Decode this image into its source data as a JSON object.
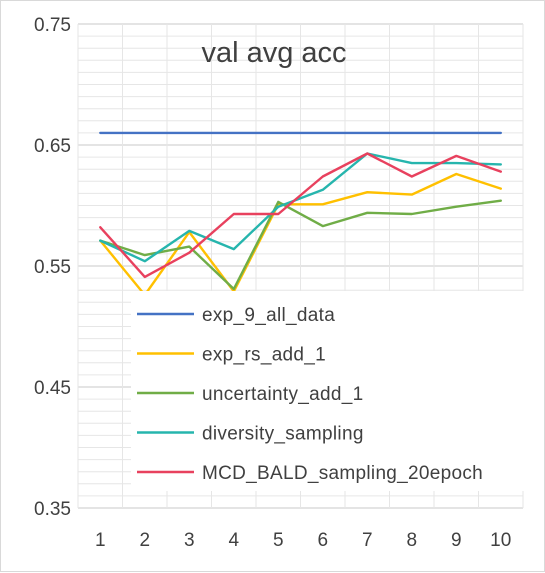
{
  "chart_data": {
    "type": "line",
    "title": "val avg acc",
    "xlabel": "",
    "ylabel": "",
    "categories": [
      "1",
      "2",
      "3",
      "4",
      "5",
      "6",
      "7",
      "8",
      "9",
      "10"
    ],
    "ylim": [
      0.35,
      0.75
    ],
    "y_ticks": [
      "0.75",
      "0.65",
      "0.55",
      "0.45",
      "0.35"
    ],
    "grid": "on",
    "legend_position": "inside-bottom",
    "series": [
      {
        "name": "exp_9_all_data",
        "color": "#4472C4",
        "values": [
          0.66,
          0.66,
          0.66,
          0.66,
          0.66,
          0.66,
          0.66,
          0.66,
          0.66,
          0.66
        ]
      },
      {
        "name": "exp_rs_add_1",
        "color": "#FFC000",
        "values": [
          0.571,
          0.526,
          0.578,
          0.529,
          0.601,
          0.601,
          0.611,
          0.609,
          0.626,
          0.614
        ]
      },
      {
        "name": "uncertainty_add_1",
        "color": "#70AD47",
        "values": [
          0.571,
          0.559,
          0.566,
          0.531,
          0.603,
          0.583,
          0.594,
          0.593,
          0.599,
          0.604
        ]
      },
      {
        "name": "diversity_sampling",
        "color": "#26B5AD",
        "values": [
          0.571,
          0.554,
          0.579,
          0.564,
          0.599,
          0.613,
          0.643,
          0.635,
          0.635,
          0.634
        ]
      },
      {
        "name": "MCD_BALD_sampling_20epoch",
        "color": "#E8415E",
        "values": [
          0.582,
          0.541,
          0.561,
          0.593,
          0.593,
          0.624,
          0.643,
          0.624,
          0.641,
          0.628
        ]
      }
    ]
  }
}
